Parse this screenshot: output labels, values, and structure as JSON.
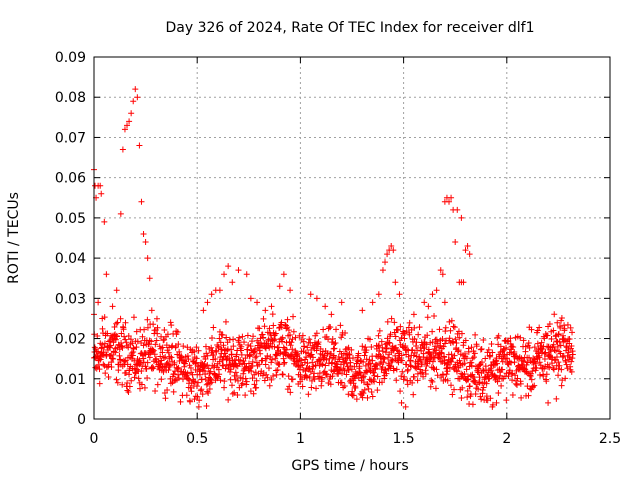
{
  "chart_data": {
    "type": "scatter",
    "title": "Day 326 of 2024, Rate Of TEC Index for receiver dlf1",
    "xlabel": "GPS time / hours",
    "ylabel": "ROTI / TECUs",
    "xlim": [
      0,
      2.5
    ],
    "ylim": [
      0,
      0.09
    ],
    "x_ticks": [
      0,
      0.5,
      1,
      1.5,
      2,
      2.5
    ],
    "x_tick_labels": [
      "0",
      "0.5",
      "1",
      "1.5",
      "2",
      "2.5"
    ],
    "y_ticks": [
      0,
      0.01,
      0.02,
      0.03,
      0.04,
      0.05,
      0.06,
      0.07,
      0.08,
      0.09
    ],
    "y_tick_labels": [
      "0",
      "0.01",
      "0.02",
      "0.03",
      "0.04",
      "0.05",
      "0.06",
      "0.07",
      "0.08",
      "0.09"
    ],
    "grid": true,
    "marker": "+",
    "marker_color": "#ff0000",
    "series": [
      {
        "name": "dlf1",
        "points": [
          [
            0.0,
            0.062
          ],
          [
            0.005,
            0.058
          ],
          [
            0.01,
            0.055
          ],
          [
            0.02,
            0.058
          ],
          [
            0.03,
            0.058
          ],
          [
            0.035,
            0.056
          ],
          [
            0.05,
            0.049
          ],
          [
            0.06,
            0.036
          ],
          [
            0.13,
            0.051
          ],
          [
            0.14,
            0.067
          ],
          [
            0.15,
            0.072
          ],
          [
            0.16,
            0.073
          ],
          [
            0.17,
            0.074
          ],
          [
            0.18,
            0.076
          ],
          [
            0.19,
            0.079
          ],
          [
            0.2,
            0.082
          ],
          [
            0.21,
            0.08
          ],
          [
            0.22,
            0.068
          ],
          [
            0.23,
            0.054
          ],
          [
            0.24,
            0.046
          ],
          [
            0.25,
            0.044
          ],
          [
            0.26,
            0.04
          ],
          [
            0.27,
            0.035
          ],
          [
            0.28,
            0.027
          ],
          [
            0.11,
            0.032
          ],
          [
            0.09,
            0.028
          ],
          [
            0.02,
            0.029
          ],
          [
            0.04,
            0.025
          ],
          [
            0.0,
            0.026
          ],
          [
            0.53,
            0.027
          ],
          [
            0.55,
            0.029
          ],
          [
            0.57,
            0.031
          ],
          [
            0.59,
            0.032
          ],
          [
            0.61,
            0.032
          ],
          [
            0.63,
            0.036
          ],
          [
            0.65,
            0.038
          ],
          [
            0.67,
            0.034
          ],
          [
            0.7,
            0.037
          ],
          [
            0.74,
            0.036
          ],
          [
            0.76,
            0.03
          ],
          [
            0.79,
            0.029
          ],
          [
            0.83,
            0.027
          ],
          [
            0.86,
            0.028
          ],
          [
            0.9,
            0.033
          ],
          [
            0.92,
            0.036
          ],
          [
            0.95,
            0.032
          ],
          [
            1.05,
            0.031
          ],
          [
            1.08,
            0.03
          ],
          [
            1.12,
            0.028
          ],
          [
            1.15,
            0.026
          ],
          [
            1.2,
            0.029
          ],
          [
            1.3,
            0.027
          ],
          [
            1.35,
            0.029
          ],
          [
            1.38,
            0.031
          ],
          [
            1.4,
            0.037
          ],
          [
            1.41,
            0.039
          ],
          [
            1.42,
            0.041
          ],
          [
            1.43,
            0.042
          ],
          [
            1.44,
            0.043
          ],
          [
            1.45,
            0.042
          ],
          [
            1.46,
            0.034
          ],
          [
            1.48,
            0.031
          ],
          [
            1.55,
            0.026
          ],
          [
            1.6,
            0.029
          ],
          [
            1.64,
            0.031
          ],
          [
            1.66,
            0.032
          ],
          [
            1.68,
            0.037
          ],
          [
            1.69,
            0.036
          ],
          [
            1.7,
            0.054
          ],
          [
            1.71,
            0.055
          ],
          [
            1.72,
            0.054
          ],
          [
            1.73,
            0.055
          ],
          [
            1.74,
            0.052
          ],
          [
            1.75,
            0.044
          ],
          [
            1.76,
            0.052
          ],
          [
            1.77,
            0.034
          ],
          [
            1.78,
            0.034
          ],
          [
            1.79,
            0.034
          ],
          [
            1.8,
            0.042
          ],
          [
            1.81,
            0.043
          ],
          [
            1.82,
            0.041
          ],
          [
            1.78,
            0.05
          ],
          [
            1.7,
            0.029
          ],
          [
            1.62,
            0.028
          ],
          [
            2.15,
            0.022
          ],
          [
            2.2,
            0.023
          ],
          [
            2.25,
            0.021
          ],
          [
            1.49,
            0.004
          ],
          [
            1.51,
            0.003
          ],
          [
            1.93,
            0.003
          ],
          [
            1.95,
            0.004
          ],
          [
            2.2,
            0.004
          ],
          [
            2.24,
            0.005
          ]
        ]
      }
    ],
    "dense_band": {
      "description_free": true,
      "x_start": 0.0,
      "x_end": 2.32,
      "y_center": 0.0145,
      "y_spread": 0.0085,
      "count": 1750
    }
  }
}
